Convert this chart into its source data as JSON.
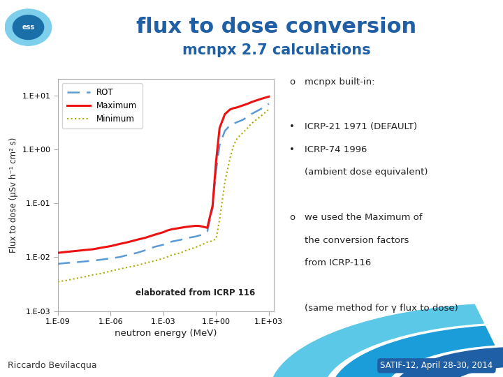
{
  "title": "flux to dose conversion",
  "subtitle": "mcnpx 2.7 calculations",
  "xlabel": "neutron energy (MeV)",
  "ylabel": "Flux to dose (μSv h⁻¹ cm² s)",
  "annotation": "elaborated from ICRP 116",
  "right_text_lines": [
    [
      "o",
      "mcnpx built-in:"
    ],
    [
      "",
      ""
    ],
    [
      "•",
      "ICRP-21 1971 (DEFAULT)"
    ],
    [
      "•",
      "ICRP-74 1996"
    ],
    [
      "",
      "(ambient dose equivalent)"
    ],
    [
      "",
      ""
    ],
    [
      "o",
      "we used the Maximum of"
    ],
    [
      "",
      "the conversion factors"
    ],
    [
      "",
      "from ICRP-116"
    ],
    [
      "",
      ""
    ],
    [
      "",
      "(same method for γ flux to dose)"
    ]
  ],
  "footer_left": "Riccardo Bevilacqua",
  "footer_right": "SATIF-12, April 28-30, 2014",
  "bg_color": "#ffffff",
  "title_color": "#1f5fa6",
  "subtitle_color": "#1f5fa6",
  "rot_color": "#5b9bd5",
  "max_color": "#ee1111",
  "min_color": "#aaaa00",
  "chart_bg": "#ffffff",
  "x_log": [
    -9,
    -8.5,
    -8,
    -7.5,
    -7,
    -6.5,
    -6,
    -5.5,
    -5,
    -4.5,
    -4,
    -3.5,
    -3,
    -2.8,
    -2.5,
    -2,
    -1.8,
    -1.5,
    -1.2,
    -1,
    -0.8,
    -0.5,
    -0.2,
    0,
    0.2,
    0.5,
    0.8,
    1,
    1.2,
    1.5,
    1.8,
    2,
    2.5,
    3
  ],
  "rot_y": [
    0.0075,
    0.0078,
    0.008,
    0.0083,
    0.0086,
    0.009,
    0.0095,
    0.01,
    0.011,
    0.012,
    0.0135,
    0.0155,
    0.017,
    0.018,
    0.0195,
    0.021,
    0.022,
    0.023,
    0.024,
    0.025,
    0.026,
    0.03,
    0.08,
    0.4,
    1.2,
    2.2,
    2.8,
    3.0,
    3.2,
    3.5,
    4.0,
    4.5,
    5.5,
    7.0
  ],
  "max_y": [
    0.012,
    0.0125,
    0.013,
    0.0135,
    0.014,
    0.015,
    0.016,
    0.0175,
    0.019,
    0.021,
    0.023,
    0.026,
    0.029,
    0.031,
    0.033,
    0.035,
    0.036,
    0.037,
    0.038,
    0.038,
    0.037,
    0.035,
    0.09,
    0.6,
    2.5,
    4.5,
    5.5,
    5.8,
    6.0,
    6.5,
    7.0,
    7.5,
    8.5,
    9.5
  ],
  "min_y": [
    0.0035,
    0.0037,
    0.004,
    0.0043,
    0.0047,
    0.005,
    0.0055,
    0.006,
    0.0065,
    0.007,
    0.0078,
    0.0085,
    0.0095,
    0.01,
    0.011,
    0.012,
    0.013,
    0.014,
    0.015,
    0.016,
    0.017,
    0.019,
    0.02,
    0.022,
    0.05,
    0.25,
    0.7,
    1.2,
    1.6,
    2.0,
    2.5,
    3.0,
    4.0,
    5.5
  ]
}
